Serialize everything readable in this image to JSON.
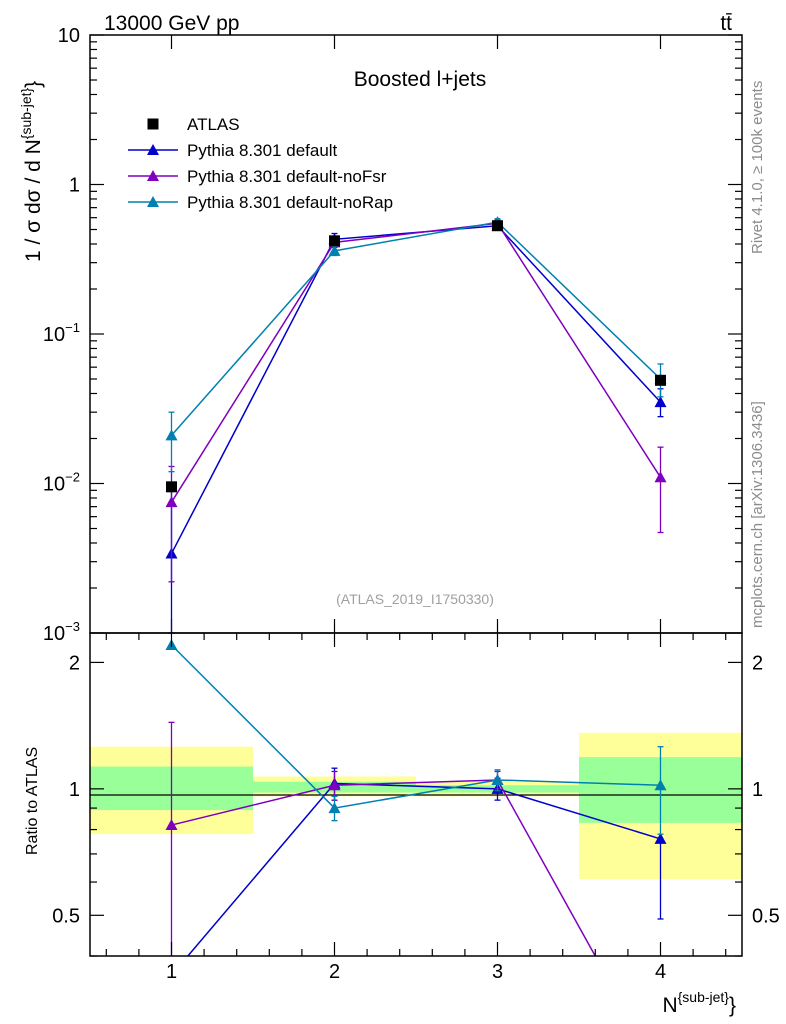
{
  "header": {
    "energy_label": "13000 GeV pp",
    "process_label": "tt̄"
  },
  "side_labels": {
    "rivet": "Rivet 4.1.0, ≥ 100k events",
    "source": "mcplots.cern.ch [arXiv:1306.3436]"
  },
  "chart_data": [
    {
      "type": "line",
      "panel": "main",
      "title": "Boosted l+jets",
      "analysis_id": "(ATLAS_2019_I1750330)",
      "xlabel": "N{sub-jet}",
      "ylabel": "1 / σ dσ / d N{sub-jet}",
      "yscale": "log",
      "xlim": [
        0.5,
        4.5
      ],
      "ylim": [
        0.001,
        10
      ],
      "x": [
        1,
        2,
        3,
        4
      ],
      "xticks": [
        "1",
        "2",
        "3",
        "4"
      ],
      "yticks": [
        {
          "value": 10,
          "label": "10",
          "sup": ""
        },
        {
          "value": 1,
          "label": "1",
          "sup": ""
        },
        {
          "value": 0.1,
          "label": "10",
          "sup": "−1"
        },
        {
          "value": 0.01,
          "label": "10",
          "sup": "−2"
        },
        {
          "value": 0.001,
          "label": "10",
          "sup": "−3"
        }
      ],
      "legend_position": "top-left",
      "series": [
        {
          "name": "ATLAS",
          "marker": "square",
          "color": "#000000",
          "values": [
            0.0095,
            0.42,
            0.53,
            0.049
          ],
          "err_lo": [
            0.0095,
            0.42,
            0.53,
            0.049
          ],
          "err_hi": [
            0.0095,
            0.42,
            0.53,
            0.049
          ]
        },
        {
          "name": "Pythia 8.301 default",
          "marker": "triangle",
          "color": "#0000cc",
          "values": [
            0.0034,
            0.43,
            0.53,
            0.035
          ],
          "err_lo": [
            0.0001,
            0.39,
            0.5,
            0.028
          ],
          "err_hi": [
            0.0095,
            0.47,
            0.56,
            0.043
          ]
        },
        {
          "name": "Pythia 8.301 default-noFsr",
          "marker": "triangle",
          "color": "#7f00bf",
          "values": [
            0.0075,
            0.41,
            0.55,
            0.011
          ],
          "err_lo": [
            0.0022,
            0.38,
            0.52,
            0.0047
          ],
          "err_hi": [
            0.013,
            0.44,
            0.58,
            0.0175
          ]
        },
        {
          "name": "Pythia 8.301 default-noRap",
          "marker": "triangle",
          "color": "#0080b0",
          "values": [
            0.021,
            0.36,
            0.56,
            0.05
          ],
          "err_lo": [
            0.012,
            0.335,
            0.53,
            0.038
          ],
          "err_hi": [
            0.03,
            0.385,
            0.59,
            0.063
          ]
        }
      ]
    },
    {
      "type": "line",
      "panel": "ratio",
      "ylabel": "Ratio to ATLAS",
      "xlabel": "N{sub-jet}",
      "yscale": "log",
      "xlim": [
        0.5,
        4.5
      ],
      "ylim": [
        0.4,
        2.35
      ],
      "x": [
        1,
        2,
        3,
        4
      ],
      "xticks": [
        "1",
        "2",
        "3",
        "4"
      ],
      "yticks": [
        {
          "value": 2,
          "label": "2"
        },
        {
          "value": 1,
          "label": "1"
        },
        {
          "value": 0.5,
          "label": "0.5"
        }
      ],
      "bands": [
        {
          "x_range": [
            0.5,
            1.5
          ],
          "yellow": [
            0.78,
            1.26
          ],
          "green": [
            0.89,
            1.13
          ]
        },
        {
          "x_range": [
            1.5,
            2.5
          ],
          "yellow": [
            0.96,
            1.07
          ],
          "green": [
            0.98,
            1.04
          ]
        },
        {
          "x_range": [
            2.5,
            3.5
          ],
          "yellow": [
            0.96,
            1.04
          ],
          "green": [
            0.98,
            1.02
          ]
        },
        {
          "x_range": [
            3.5,
            4.5
          ],
          "yellow": [
            0.61,
            1.36
          ],
          "green": [
            0.83,
            1.19
          ]
        }
      ],
      "series": [
        {
          "name": "Pythia 8.301 default",
          "color": "#0000cc",
          "values": [
            0.36,
            1.03,
            1.0,
            0.76
          ],
          "err_lo": [
            0.36,
            0.94,
            0.94,
            0.49
          ],
          "err_hi": [
            0.36,
            1.12,
            1.06,
            0.76
          ]
        },
        {
          "name": "Pythia 8.301 default-noFsr",
          "color": "#7f00bf",
          "values": [
            0.82,
            1.02,
            1.05,
            0.21
          ],
          "err_lo": [
            0.2,
            0.94,
            1.0,
            0.21
          ],
          "err_hi": [
            1.44,
            1.1,
            1.1,
            0.21
          ]
        },
        {
          "name": "Pythia 8.301 default-noRap",
          "color": "#0080b0",
          "values": [
            2.2,
            0.9,
            1.05,
            1.02
          ],
          "err_lo": [
            2.2,
            0.84,
            0.99,
            0.78
          ],
          "err_hi": [
            2.2,
            0.96,
            1.11,
            1.26
          ]
        }
      ]
    }
  ]
}
